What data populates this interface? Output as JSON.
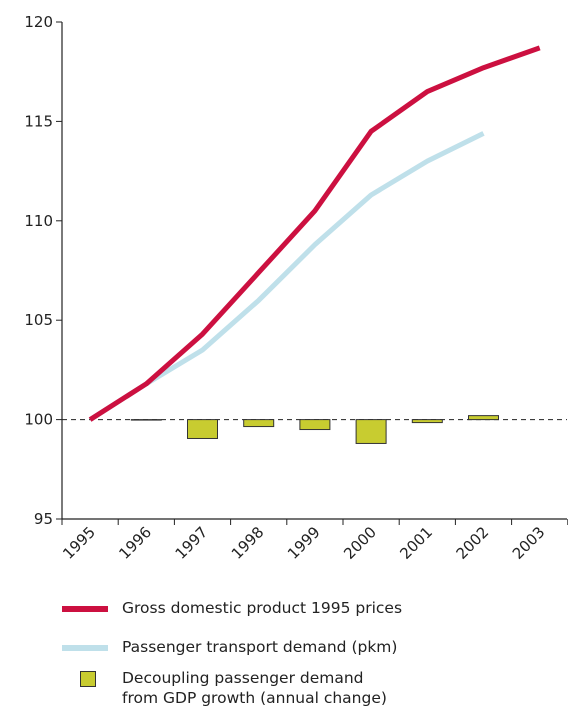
{
  "chart_data": {
    "type": "line_bar",
    "categories": [
      "1995",
      "1996",
      "1997",
      "1998",
      "1999",
      "2000",
      "2001",
      "2002",
      "2003"
    ],
    "series": [
      {
        "name": "Gross domestic product 1995 prices",
        "type": "line",
        "color": "#cc1040",
        "values": [
          100,
          101.8,
          104.3,
          107.4,
          110.5,
          114.5,
          116.5,
          117.7,
          118.7
        ]
      },
      {
        "name": "Passenger transport demand (pkm)",
        "type": "line",
        "color": "#bfe0ea",
        "values": [
          100,
          101.8,
          103.5,
          106.0,
          108.8,
          111.3,
          113.0,
          114.4,
          null
        ]
      },
      {
        "name": "Decoupling passenger demand\nfrom GDP growth (annual change)",
        "type": "bar",
        "color": "#c8cc30",
        "values": [
          null,
          0.0,
          -0.95,
          -0.35,
          -0.5,
          -1.2,
          -0.15,
          0.2,
          null
        ]
      }
    ],
    "bar_base": 100,
    "ylim": [
      95,
      120
    ],
    "yticks": [
      95,
      100,
      105,
      110,
      115,
      120
    ]
  }
}
